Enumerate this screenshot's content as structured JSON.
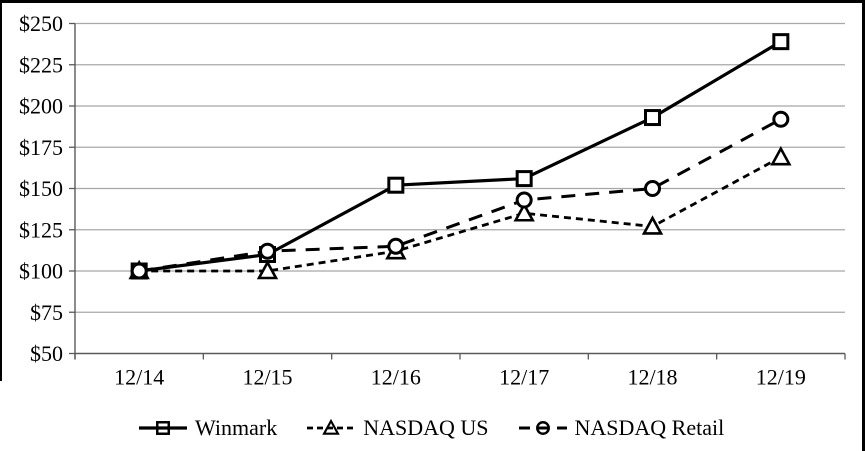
{
  "chart_data": {
    "type": "line",
    "title": "",
    "x": [
      "12/14",
      "12/15",
      "12/16",
      "12/17",
      "12/18",
      "12/19"
    ],
    "series": [
      {
        "name": "Winmark",
        "marker": "square",
        "dash": "solid",
        "values": [
          100,
          110,
          152,
          156,
          193,
          239
        ]
      },
      {
        "name": "NASDAQ US",
        "marker": "triangle",
        "dash": "short-dash",
        "values": [
          100,
          100,
          112,
          135,
          127,
          169
        ]
      },
      {
        "name": "NASDAQ Retail",
        "marker": "circle",
        "dash": "long-dash",
        "values": [
          100,
          112,
          115,
          143,
          150,
          192
        ]
      }
    ],
    "ylim": [
      50,
      250
    ],
    "ytick_step": 25,
    "ytick_labels": [
      "$250",
      "$225",
      "$200",
      "$175",
      "$150",
      "$125",
      "$100",
      "$75",
      "$50"
    ],
    "xlabel": "",
    "ylabel": "",
    "grid": true,
    "legend_position": "bottom"
  },
  "colors": {
    "background": "#ffffff",
    "line": "#000000",
    "grid": "#a8a8a8",
    "axis": "#5a5a5a",
    "text": "#000000",
    "border": "#000000"
  }
}
